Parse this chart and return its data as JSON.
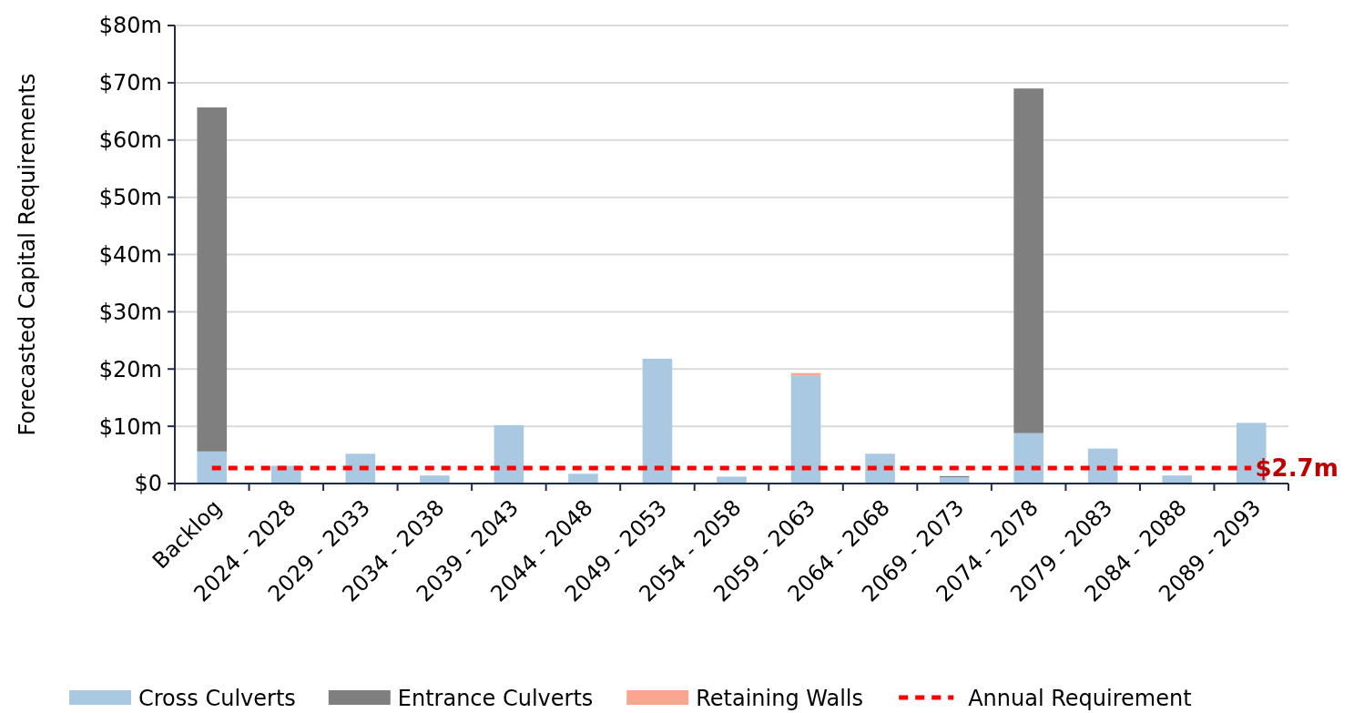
{
  "chart_data": {
    "type": "bar",
    "stacked": true,
    "ylabel": "Forecasted Capital Requirements",
    "categories": [
      "Backlog",
      "2024 - 2028",
      "2029 - 2033",
      "2034 - 2038",
      "2039 - 2043",
      "2044 - 2048",
      "2049 - 2053",
      "2054 - 2058",
      "2059 - 2063",
      "2064 - 2068",
      "2069 - 2073",
      "2074 - 2078",
      "2079 - 2083",
      "2084 - 2088",
      "2089 - 2093"
    ],
    "series": [
      {
        "name": "Cross Culverts",
        "color": "#a9c8e2",
        "values": [
          5.6,
          3.1,
          5.2,
          1.4,
          10.2,
          1.7,
          21.8,
          1.2,
          18.8,
          5.2,
          1.1,
          8.8,
          6.1,
          1.4,
          10.6
        ]
      },
      {
        "name": "Entrance Culverts",
        "color": "#7f7f7f",
        "values": [
          60.1,
          null,
          null,
          null,
          null,
          null,
          null,
          null,
          null,
          null,
          0.2,
          60.2,
          null,
          null,
          null
        ]
      },
      {
        "name": "Retaining Walls",
        "color": "#f9a590",
        "values": [
          null,
          null,
          null,
          null,
          null,
          null,
          null,
          null,
          0.5,
          null,
          null,
          null,
          null,
          null,
          null
        ]
      },
      {
        "name": "Annual Requirement",
        "type": "line",
        "color": "#ff0000",
        "line_style": "dashed",
        "values": [
          2.7,
          2.7,
          2.7,
          2.7,
          2.7,
          2.7,
          2.7,
          2.7,
          2.7,
          2.7,
          2.7,
          2.7,
          2.7,
          2.7,
          2.7
        ]
      }
    ],
    "annotations": [
      "$2.7m"
    ],
    "ylim": [
      0,
      80
    ],
    "yticks": [
      {
        "value": 0,
        "label": "$0"
      },
      {
        "value": 10,
        "label": "$10m"
      },
      {
        "value": 20,
        "label": "$20m"
      },
      {
        "value": 30,
        "label": "$30m"
      },
      {
        "value": 40,
        "label": "$40m"
      },
      {
        "value": 50,
        "label": "$50m"
      },
      {
        "value": 60,
        "label": "$60m"
      },
      {
        "value": 70,
        "label": "$70m"
      },
      {
        "value": 80,
        "label": "$80m"
      }
    ],
    "grid": "y",
    "legend": "bottom"
  }
}
